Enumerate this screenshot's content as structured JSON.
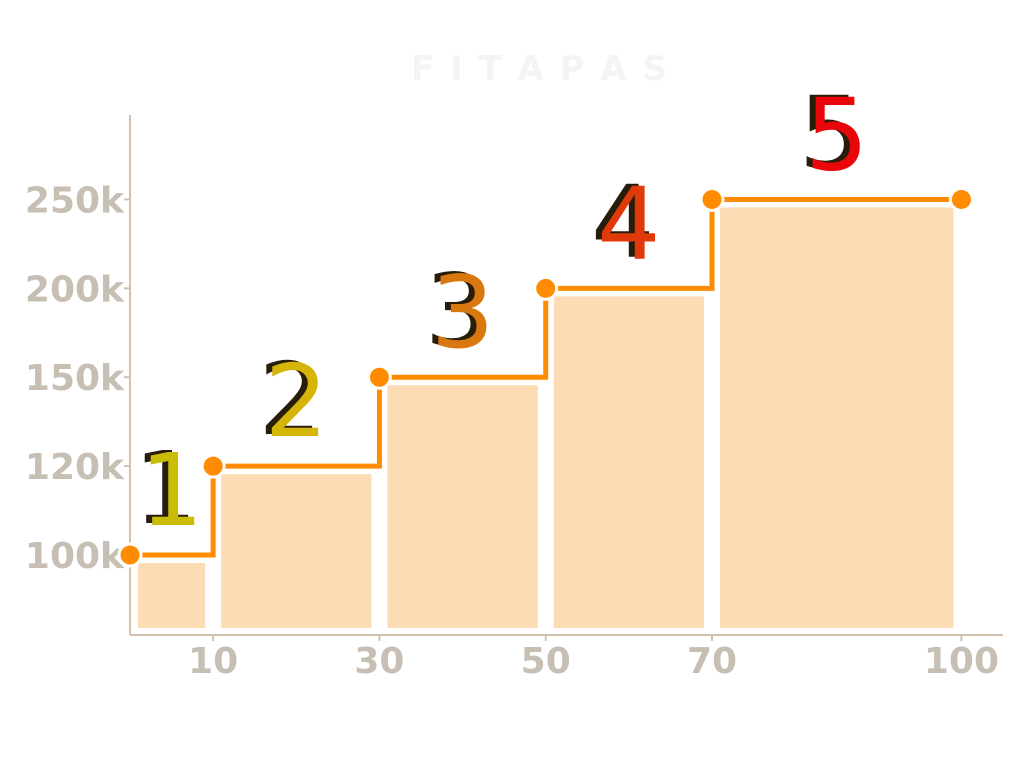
{
  "chart_data": {
    "type": "step",
    "title": "F I T A P A S",
    "x_ticks": [
      "10",
      "30",
      "50",
      "70",
      "100"
    ],
    "y_ticks": [
      "100k",
      "120k",
      "150k",
      "200k",
      "250k"
    ],
    "x_tick_values": [
      10,
      30,
      50,
      70,
      100
    ],
    "xlim": [
      0,
      105
    ],
    "ylim_ticks_index_range": [
      -0.9,
      4.95
    ],
    "points": [
      {
        "x": 0,
        "y": "100k"
      },
      {
        "x": 10,
        "y": "120k"
      },
      {
        "x": 30,
        "y": "150k"
      },
      {
        "x": 50,
        "y": "200k"
      },
      {
        "x": 70,
        "y": "250k"
      },
      {
        "x": 100,
        "y": "250k"
      }
    ],
    "bars": [
      {
        "x0": 0,
        "x1": 10,
        "level": "100k"
      },
      {
        "x0": 10,
        "x1": 30,
        "level": "120k"
      },
      {
        "x0": 30,
        "x1": 50,
        "level": "150k"
      },
      {
        "x0": 50,
        "x1": 70,
        "level": "200k"
      },
      {
        "x0": 70,
        "x1": 100,
        "level": "250k"
      }
    ],
    "step_labels": [
      {
        "text": "1",
        "color": "#c9bd08",
        "x": 5,
        "level": "100k"
      },
      {
        "text": "2",
        "color": "#d4b508",
        "x": 20,
        "level": "120k"
      },
      {
        "text": "3",
        "color": "#d9780f",
        "x": 40,
        "level": "150k"
      },
      {
        "text": "4",
        "color": "#e03a0b",
        "x": 60,
        "level": "200k"
      },
      {
        "text": "5",
        "color": "#e8060a",
        "x": 85,
        "level": "250k"
      }
    ],
    "colors": {
      "line": "#ff8c00",
      "bar_fill": "#fcdcb4",
      "axis": "#d3c0ae",
      "tick_text": "#c8bfb4",
      "shadow": "#2a1c0a"
    },
    "grid": false,
    "legend": "none"
  }
}
